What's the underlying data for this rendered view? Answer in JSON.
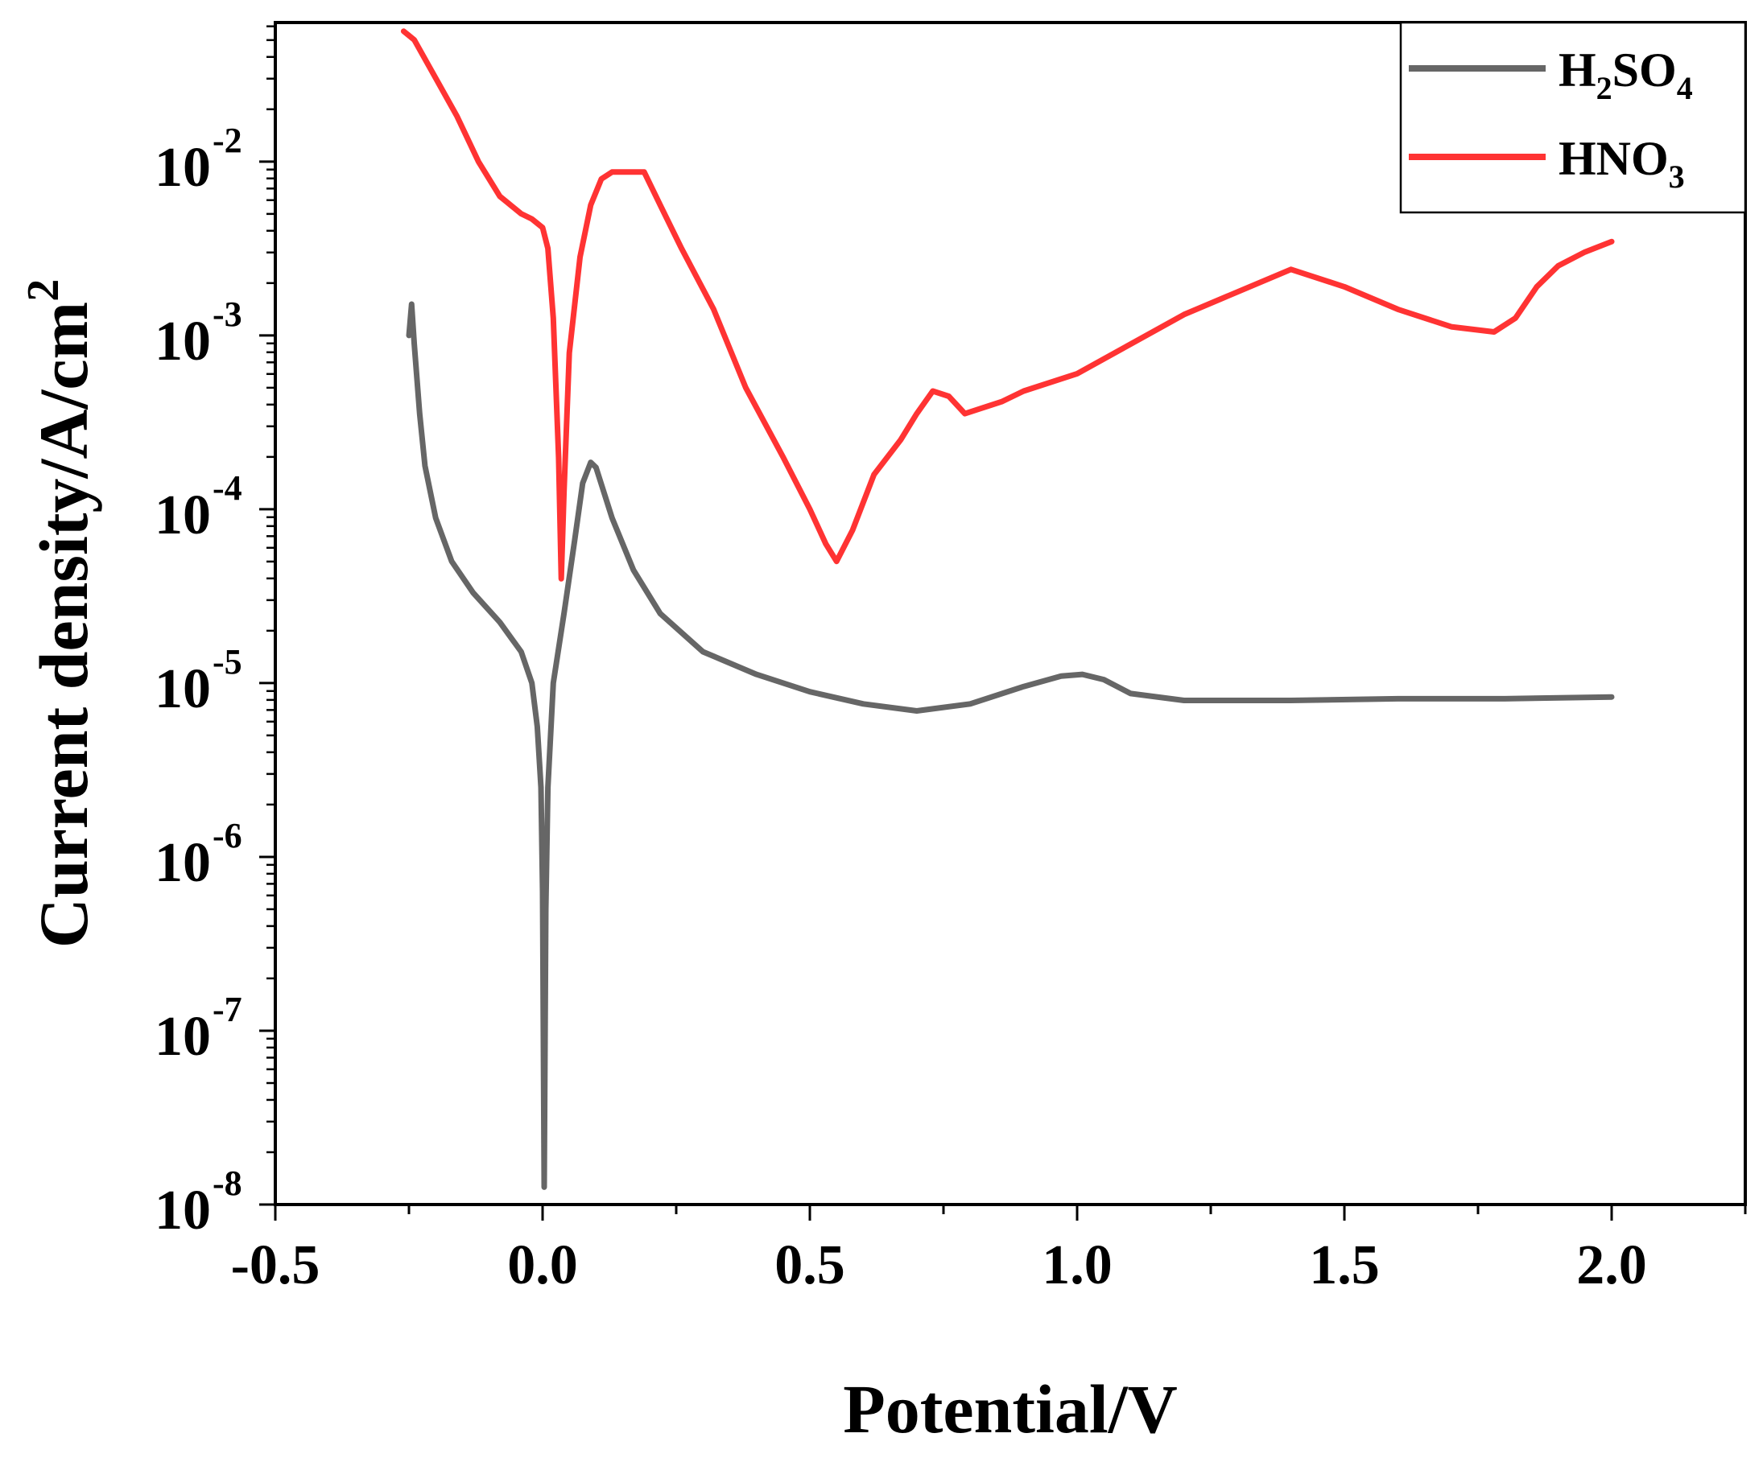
{
  "chart_data": {
    "type": "line",
    "xlabel": "Potential/V",
    "ylabel": {
      "base": "Current density/A/cm",
      "sup": "2"
    },
    "xlim": [
      -0.5,
      2.25
    ],
    "ylim_log10": [
      -8,
      -1.2
    ],
    "y_scale": "log",
    "grid": false,
    "legend_position": "top-right",
    "x_ticks": [
      {
        "value": -0.5,
        "label": "-0.5"
      },
      {
        "value": 0.0,
        "label": "0.0"
      },
      {
        "value": 0.5,
        "label": "0.5"
      },
      {
        "value": 1.0,
        "label": "1.0"
      },
      {
        "value": 1.5,
        "label": "1.5"
      },
      {
        "value": 2.0,
        "label": "2.0"
      }
    ],
    "y_ticks": [
      {
        "exp": -2,
        "base": "10",
        "sup": "-2"
      },
      {
        "exp": -3,
        "base": "10",
        "sup": "-3"
      },
      {
        "exp": -4,
        "base": "10",
        "sup": "-4"
      },
      {
        "exp": -5,
        "base": "10",
        "sup": "-5"
      },
      {
        "exp": -6,
        "base": "10",
        "sup": "-6"
      },
      {
        "exp": -7,
        "base": "10",
        "sup": "-7"
      },
      {
        "exp": -8,
        "base": "10",
        "sup": "-8"
      }
    ],
    "series": [
      {
        "name": "H2SO4",
        "legend_parts": [
          [
            "H",
            ""
          ],
          [
            "2",
            "sub"
          ],
          [
            "SO",
            ""
          ],
          [
            "4",
            "sub"
          ]
        ],
        "color": "#666666",
        "points": [
          [
            -0.25,
            -3.0
          ],
          [
            -0.245,
            -2.82
          ],
          [
            -0.24,
            -3.05
          ],
          [
            -0.23,
            -3.45
          ],
          [
            -0.22,
            -3.75
          ],
          [
            -0.2,
            -4.05
          ],
          [
            -0.17,
            -4.3
          ],
          [
            -0.13,
            -4.48
          ],
          [
            -0.08,
            -4.65
          ],
          [
            -0.04,
            -4.82
          ],
          [
            -0.02,
            -5.0
          ],
          [
            -0.01,
            -5.25
          ],
          [
            -0.003,
            -5.6
          ],
          [
            0.0,
            -6.2
          ],
          [
            0.003,
            -7.9
          ],
          [
            0.006,
            -6.3
          ],
          [
            0.01,
            -5.6
          ],
          [
            0.02,
            -5.0
          ],
          [
            0.04,
            -4.6
          ],
          [
            0.06,
            -4.18
          ],
          [
            0.075,
            -3.85
          ],
          [
            0.09,
            -3.73
          ],
          [
            0.1,
            -3.76
          ],
          [
            0.13,
            -4.05
          ],
          [
            0.17,
            -4.35
          ],
          [
            0.22,
            -4.6
          ],
          [
            0.3,
            -4.82
          ],
          [
            0.4,
            -4.95
          ],
          [
            0.5,
            -5.05
          ],
          [
            0.6,
            -5.12
          ],
          [
            0.7,
            -5.16
          ],
          [
            0.8,
            -5.12
          ],
          [
            0.9,
            -5.02
          ],
          [
            0.97,
            -4.96
          ],
          [
            1.01,
            -4.95
          ],
          [
            1.05,
            -4.98
          ],
          [
            1.1,
            -5.06
          ],
          [
            1.2,
            -5.1
          ],
          [
            1.4,
            -5.1
          ],
          [
            1.6,
            -5.09
          ],
          [
            1.8,
            -5.09
          ],
          [
            2.0,
            -5.08
          ]
        ]
      },
      {
        "name": "HNO3",
        "legend_parts": [
          [
            "HNO",
            ""
          ],
          [
            "3",
            "sub"
          ]
        ],
        "color": "#ff3333",
        "points": [
          [
            -0.26,
            -1.25
          ],
          [
            -0.24,
            -1.3
          ],
          [
            -0.2,
            -1.52
          ],
          [
            -0.16,
            -1.74
          ],
          [
            -0.12,
            -2.0
          ],
          [
            -0.08,
            -2.2
          ],
          [
            -0.04,
            -2.3
          ],
          [
            -0.02,
            -2.33
          ],
          [
            0.0,
            -2.38
          ],
          [
            0.01,
            -2.5
          ],
          [
            0.02,
            -2.9
          ],
          [
            0.03,
            -3.7
          ],
          [
            0.035,
            -4.4
          ],
          [
            0.04,
            -3.9
          ],
          [
            0.05,
            -3.1
          ],
          [
            0.07,
            -2.55
          ],
          [
            0.09,
            -2.25
          ],
          [
            0.11,
            -2.1
          ],
          [
            0.13,
            -2.06
          ],
          [
            0.19,
            -2.06
          ],
          [
            0.22,
            -2.25
          ],
          [
            0.26,
            -2.5
          ],
          [
            0.32,
            -2.85
          ],
          [
            0.38,
            -3.3
          ],
          [
            0.45,
            -3.7
          ],
          [
            0.5,
            -4.0
          ],
          [
            0.53,
            -4.2
          ],
          [
            0.55,
            -4.3
          ],
          [
            0.58,
            -4.12
          ],
          [
            0.62,
            -3.8
          ],
          [
            0.67,
            -3.6
          ],
          [
            0.7,
            -3.45
          ],
          [
            0.73,
            -3.32
          ],
          [
            0.76,
            -3.35
          ],
          [
            0.79,
            -3.45
          ],
          [
            0.82,
            -3.42
          ],
          [
            0.86,
            -3.38
          ],
          [
            0.9,
            -3.32
          ],
          [
            1.0,
            -3.22
          ],
          [
            1.1,
            -3.05
          ],
          [
            1.2,
            -2.88
          ],
          [
            1.3,
            -2.75
          ],
          [
            1.4,
            -2.62
          ],
          [
            1.5,
            -2.72
          ],
          [
            1.6,
            -2.85
          ],
          [
            1.7,
            -2.95
          ],
          [
            1.78,
            -2.98
          ],
          [
            1.82,
            -2.9
          ],
          [
            1.86,
            -2.72
          ],
          [
            1.9,
            -2.6
          ],
          [
            1.95,
            -2.52
          ],
          [
            2.0,
            -2.46
          ]
        ]
      }
    ]
  }
}
